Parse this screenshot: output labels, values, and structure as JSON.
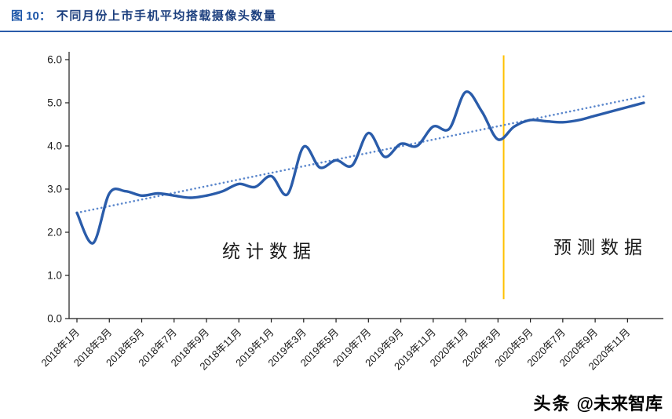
{
  "header": {
    "figure_label": "图 10：",
    "title": "不同月份上市手机平均搭载摄像头数量",
    "accent_color": "#2A5CAA"
  },
  "chart_data": {
    "type": "line",
    "title": "不同月份上市手机平均搭载摄像头数量",
    "xlabel": "",
    "ylabel": "",
    "ylim": [
      0,
      6
    ],
    "y_ticks": [
      0,
      1,
      2,
      3,
      4,
      5,
      6
    ],
    "grid": false,
    "legend": "none",
    "x_tick_every": 2,
    "x_tick_labels": [
      "2018年1月",
      "2018年3月",
      "2018年5月",
      "2018年7月",
      "2018年9月",
      "2018年11月",
      "2019年1月",
      "2019年3月",
      "2019年5月",
      "2019年7月",
      "2019年9月",
      "2019年11月",
      "2020年1月",
      "2020年3月",
      "2020年5月",
      "2020年7月",
      "2020年9月",
      "2020年11月"
    ],
    "main_series": {
      "style": "solid",
      "color": "#2A5CAA",
      "values": [
        2.45,
        1.75,
        2.9,
        2.95,
        2.85,
        2.9,
        2.85,
        2.8,
        2.85,
        2.95,
        3.12,
        3.05,
        3.3,
        2.88,
        3.98,
        3.5,
        3.67,
        3.55,
        4.3,
        3.75,
        4.05,
        4.0,
        4.45,
        4.4,
        5.25,
        4.8,
        4.15,
        4.45,
        4.6,
        4.57,
        4.55,
        4.6,
        4.7,
        4.8,
        4.9,
        5.0
      ]
    },
    "trend_line": {
      "style": "dotted",
      "color": "#5B87CC",
      "from": [
        0,
        2.45
      ],
      "to": [
        35,
        5.15
      ]
    },
    "divider_line": {
      "color": "#FFC000",
      "x_index": 26.35,
      "y_from": 0.45,
      "y_to": 6.1
    },
    "annotations": {
      "statistical": "统计数据",
      "forecast": "预测数据"
    }
  },
  "watermark": {
    "brand": "头条",
    "handle": "@未来智库"
  }
}
